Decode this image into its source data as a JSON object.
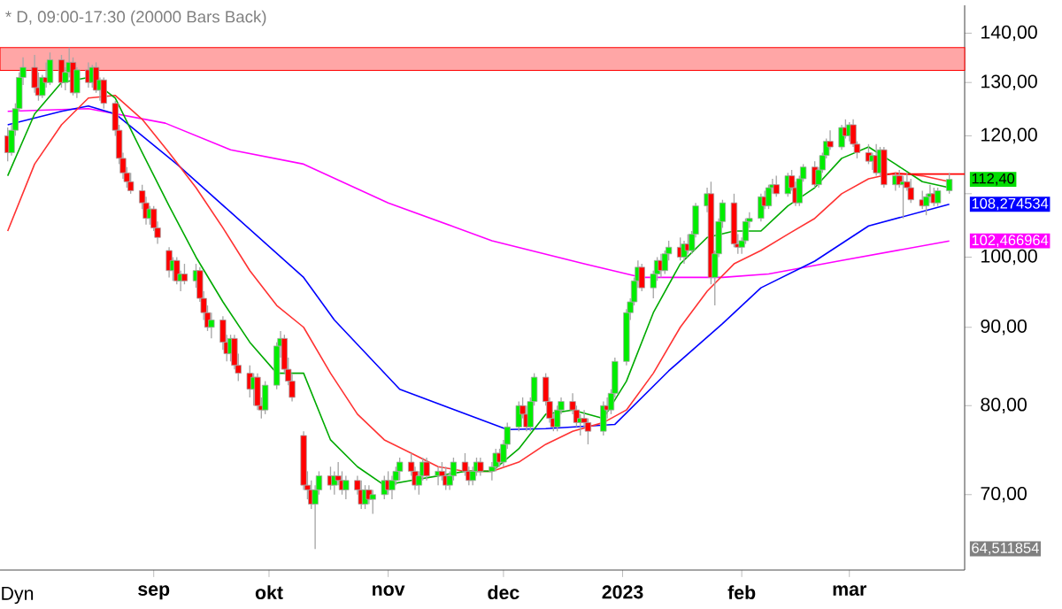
{
  "chart_data": {
    "type": "candlestick",
    "title": "* D, 09:00-17:30 (20000 Bars Back)",
    "x": [
      "2022-07-25",
      "2022-07-26",
      "2022-07-27",
      "2022-07-28",
      "2022-07-29",
      "2022-08-01",
      "2022-08-02",
      "2022-08-03",
      "2022-08-04",
      "2022-08-05",
      "2022-08-08",
      "2022-08-09",
      "2022-08-10",
      "2022-08-11",
      "2022-08-12",
      "2022-08-15",
      "2022-08-16",
      "2022-08-17",
      "2022-08-18",
      "2022-08-19",
      "2022-08-22",
      "2022-08-23",
      "2022-08-24",
      "2022-08-25",
      "2022-08-26",
      "2022-08-29",
      "2022-08-30",
      "2022-08-31",
      "2022-09-01",
      "2022-09-02",
      "2022-09-05",
      "2022-09-06",
      "2022-09-07",
      "2022-09-08",
      "2022-09-09",
      "2022-09-12",
      "2022-09-13",
      "2022-09-14",
      "2022-09-15",
      "2022-09-16",
      "2022-09-19",
      "2022-09-20",
      "2022-09-21",
      "2022-09-22",
      "2022-09-23",
      "2022-09-26",
      "2022-09-27",
      "2022-09-28",
      "2022-09-29",
      "2022-09-30",
      "2022-10-03",
      "2022-10-04",
      "2022-10-05",
      "2022-10-06",
      "2022-10-07",
      "2022-10-10",
      "2022-10-11",
      "2022-10-12",
      "2022-10-13",
      "2022-10-14",
      "2022-10-17",
      "2022-10-18",
      "2022-10-19",
      "2022-10-20",
      "2022-10-21",
      "2022-10-24",
      "2022-10-25",
      "2022-10-26",
      "2022-10-27",
      "2022-10-28",
      "2022-10-31",
      "2022-11-01",
      "2022-11-02",
      "2022-11-03",
      "2022-11-04",
      "2022-11-07",
      "2022-11-08",
      "2022-11-09",
      "2022-11-10",
      "2022-11-11",
      "2022-11-14",
      "2022-11-15",
      "2022-11-16",
      "2022-11-17",
      "2022-11-18",
      "2022-11-21",
      "2022-11-22",
      "2022-11-23",
      "2022-11-24",
      "2022-11-25",
      "2022-11-28",
      "2022-11-29",
      "2022-11-30",
      "2022-12-01",
      "2022-12-02",
      "2022-12-05",
      "2022-12-06",
      "2022-12-07",
      "2022-12-08",
      "2022-12-09",
      "2022-12-12",
      "2022-12-13",
      "2022-12-14",
      "2022-12-15",
      "2022-12-16",
      "2022-12-19",
      "2022-12-20",
      "2022-12-21",
      "2022-12-22",
      "2022-12-23",
      "2022-12-27",
      "2022-12-28",
      "2022-12-29",
      "2022-12-30",
      "2023-01-02",
      "2023-01-03",
      "2023-01-04",
      "2023-01-05",
      "2023-01-06",
      "2023-01-09",
      "2023-01-10",
      "2023-01-11",
      "2023-01-12",
      "2023-01-13",
      "2023-01-16",
      "2023-01-17",
      "2023-01-18",
      "2023-01-19",
      "2023-01-20",
      "2023-01-23",
      "2023-01-24",
      "2023-01-25",
      "2023-01-26",
      "2023-01-27",
      "2023-01-30",
      "2023-01-31",
      "2023-02-01",
      "2023-02-02",
      "2023-02-03",
      "2023-02-06",
      "2023-02-07",
      "2023-02-08",
      "2023-02-09",
      "2023-02-10",
      "2023-02-13",
      "2023-02-14",
      "2023-02-15",
      "2023-02-16",
      "2023-02-17",
      "2023-02-20",
      "2023-02-21",
      "2023-02-22",
      "2023-02-23",
      "2023-02-24",
      "2023-02-27",
      "2023-02-28",
      "2023-03-01",
      "2023-03-02",
      "2023-03-03",
      "2023-03-06",
      "2023-03-07",
      "2023-03-08",
      "2023-03-09",
      "2023-03-10",
      "2023-03-13",
      "2023-03-14",
      "2023-03-15",
      "2023-03-16",
      "2023-03-17",
      "2023-03-20",
      "2023-03-21",
      "2023-03-22",
      "2023-03-23",
      "2023-03-24",
      "2023-03-27"
    ],
    "ohlc": [
      [
        120,
        121.5,
        115.5,
        117
      ],
      [
        117,
        122,
        116.5,
        121
      ],
      [
        121,
        126,
        120,
        125
      ],
      [
        125,
        132,
        124.5,
        131
      ],
      [
        131,
        135,
        129.5,
        133
      ],
      [
        133,
        135.5,
        128,
        129
      ],
      [
        129,
        132,
        126.5,
        127.5
      ],
      [
        127.5,
        131.5,
        127,
        131
      ],
      [
        131,
        134,
        129,
        130
      ],
      [
        130,
        136,
        129.5,
        134.5
      ],
      [
        134.5,
        135.5,
        129,
        130
      ],
      [
        130,
        133,
        128.5,
        132
      ],
      [
        132,
        137,
        131,
        134
      ],
      [
        134,
        135,
        127.5,
        128
      ],
      [
        128,
        133,
        127,
        132.5
      ],
      [
        132.5,
        134,
        129,
        130
      ],
      [
        130,
        133.5,
        129,
        133
      ],
      [
        133,
        134,
        128,
        128.5
      ],
      [
        128.5,
        131,
        126.5,
        130.5
      ],
      [
        130.5,
        131,
        125,
        126
      ],
      [
        126,
        126.5,
        120,
        121
      ],
      [
        121,
        122,
        115,
        116
      ],
      [
        116,
        117,
        112.5,
        113.5
      ],
      [
        113.5,
        114.5,
        111,
        112
      ],
      [
        112,
        113.5,
        110,
        110.5
      ],
      [
        110.5,
        111.5,
        107.5,
        108.5
      ],
      [
        108.5,
        109.5,
        105,
        106
      ],
      [
        106,
        108,
        105,
        107.5
      ],
      [
        107.5,
        108,
        104,
        104.5
      ],
      [
        104.5,
        105.5,
        102,
        103
      ],
      [
        101,
        101.5,
        97,
        98
      ],
      [
        98,
        100,
        96.5,
        99.5
      ],
      [
        99.5,
        100,
        96,
        96.5
      ],
      [
        96.5,
        98,
        95,
        97.5
      ],
      [
        97.5,
        99,
        96,
        96.5
      ],
      [
        96.5,
        99,
        95.5,
        98
      ],
      [
        98,
        98.5,
        93.5,
        94
      ],
      [
        94,
        95,
        91,
        92
      ],
      [
        92,
        93,
        89.5,
        90
      ],
      [
        90,
        92,
        88.5,
        91
      ],
      [
        91,
        91.5,
        87,
        88
      ],
      [
        88,
        89,
        85.5,
        86.5
      ],
      [
        86.5,
        89,
        85.5,
        88.5
      ],
      [
        88.5,
        89,
        84.5,
        85
      ],
      [
        85,
        86.5,
        83,
        84
      ],
      [
        84,
        85,
        81,
        82
      ],
      [
        82,
        84,
        80,
        83.5
      ],
      [
        83.5,
        84,
        79.5,
        80
      ],
      [
        80,
        81,
        78.5,
        79.5
      ],
      [
        79.5,
        83,
        79,
        82.5
      ],
      [
        82.5,
        88,
        82,
        87.5
      ],
      [
        87.5,
        89.5,
        86,
        88.5
      ],
      [
        88.5,
        89,
        84,
        84.5
      ],
      [
        84.5,
        86,
        82.5,
        83
      ],
      [
        83,
        84,
        80.5,
        81
      ],
      [
        76.5,
        77,
        70.5,
        71
      ],
      [
        71,
        72.5,
        69.5,
        70.5
      ],
      [
        70.5,
        71.5,
        68.5,
        69
      ],
      [
        69,
        71,
        64.511854,
        70.5
      ],
      [
        70.5,
        72.5,
        70,
        72
      ],
      [
        72,
        73,
        70.5,
        71
      ],
      [
        71,
        72.5,
        70,
        72
      ],
      [
        72,
        73.5,
        71,
        71.5
      ],
      [
        71.5,
        72.5,
        70,
        70.5
      ],
      [
        70.5,
        72,
        69.5,
        71.5
      ],
      [
        71.5,
        72,
        70,
        70.5
      ],
      [
        70.5,
        71.5,
        68.5,
        69
      ],
      [
        69,
        71,
        68.5,
        70.5
      ],
      [
        70.5,
        71,
        69,
        69.5
      ],
      [
        69.5,
        70.5,
        68,
        70
      ],
      [
        70,
        72,
        69.5,
        71.5
      ],
      [
        71.5,
        72.5,
        70,
        70.5
      ],
      [
        70.5,
        72,
        69.5,
        71.5
      ],
      [
        71.5,
        73,
        71,
        72.5
      ],
      [
        72.5,
        74,
        71.5,
        73.5
      ],
      [
        73.5,
        74.5,
        72,
        72.5
      ],
      [
        72.5,
        73,
        70.5,
        71
      ],
      [
        71,
        72.5,
        70,
        72
      ],
      [
        72,
        74,
        71.5,
        73.5
      ],
      [
        73.5,
        74,
        71.5,
        72
      ],
      [
        72,
        73,
        71,
        72.5
      ],
      [
        72.5,
        73.5,
        71.5,
        72
      ],
      [
        72,
        73,
        70.5,
        71
      ],
      [
        71,
        72.5,
        70.5,
        72
      ],
      [
        72,
        74,
        71.5,
        73.5
      ],
      [
        73.5,
        74.5,
        72,
        72.5
      ],
      [
        72.5,
        73,
        71,
        71.5
      ],
      [
        71.5,
        73,
        71,
        72.5
      ],
      [
        72.5,
        74,
        72,
        73.5
      ],
      [
        73.5,
        74,
        72,
        72.5
      ],
      [
        72.5,
        73.5,
        71.5,
        73
      ],
      [
        73,
        75,
        72.5,
        74.5
      ],
      [
        74.5,
        75,
        73,
        73.5
      ],
      [
        73.5,
        76,
        73,
        75.5
      ],
      [
        75.5,
        78,
        75,
        77.5
      ],
      [
        77.5,
        80.5,
        77,
        80
      ],
      [
        80,
        81,
        78.5,
        79
      ],
      [
        79,
        80,
        77,
        77.5
      ],
      [
        77.5,
        81,
        77,
        80.5
      ],
      [
        80.5,
        84,
        80,
        83.5
      ],
      [
        83.5,
        84,
        80,
        80.5
      ],
      [
        80.5,
        81,
        78,
        78.5
      ],
      [
        78.5,
        79,
        77,
        77.5
      ],
      [
        77.5,
        80,
        77,
        79.5
      ],
      [
        79.5,
        81,
        79,
        80.5
      ],
      [
        80.5,
        81.5,
        79,
        79.5
      ],
      [
        79.5,
        80,
        77.5,
        78
      ],
      [
        78,
        79,
        76.5,
        78.5
      ],
      [
        78.5,
        79.5,
        77.5,
        78
      ],
      [
        78,
        78.5,
        75.5,
        77
      ],
      [
        77,
        80.5,
        76.5,
        80
      ],
      [
        80,
        81,
        78.5,
        79.5
      ],
      [
        79.5,
        82,
        79,
        81.5
      ],
      [
        81.5,
        86,
        81,
        85.5
      ],
      [
        85.5,
        92.5,
        85,
        92
      ],
      [
        92,
        94,
        91,
        93.5
      ],
      [
        93.5,
        97,
        93,
        96.5
      ],
      [
        96.5,
        99.5,
        95.5,
        98.5
      ],
      [
        98.5,
        99,
        95,
        95.5
      ],
      [
        95.5,
        98,
        94,
        97.5
      ],
      [
        97.5,
        100,
        96.5,
        99.5
      ],
      [
        99.5,
        100.5,
        97,
        98
      ],
      [
        98,
        101,
        97.5,
        100.5
      ],
      [
        100.5,
        102.5,
        99.5,
        101.5
      ],
      [
        101.5,
        103,
        99.5,
        100
      ],
      [
        100,
        102.5,
        99,
        102
      ],
      [
        102,
        103.5,
        100.5,
        101
      ],
      [
        101,
        104,
        100.5,
        103.5
      ],
      [
        103.5,
        108.5,
        103,
        108
      ],
      [
        108,
        111,
        107,
        110
      ],
      [
        110,
        112,
        96,
        97
      ],
      [
        97,
        101,
        93,
        100.5
      ],
      [
        100.5,
        106,
        100,
        105.5
      ],
      [
        105.5,
        109,
        104.5,
        108.5
      ],
      [
        108.5,
        110,
        101.5,
        102
      ],
      [
        102,
        103.5,
        100.5,
        101.5
      ],
      [
        101.5,
        103,
        100.5,
        102.5
      ],
      [
        102.5,
        106,
        102,
        105.5
      ],
      [
        105.5,
        107,
        104.5,
        106
      ],
      [
        106,
        110,
        105.5,
        109.5
      ],
      [
        109.5,
        110.5,
        107.5,
        108
      ],
      [
        108,
        111.5,
        107.5,
        111
      ],
      [
        111,
        112.5,
        110,
        111.5
      ],
      [
        111.5,
        113,
        109.5,
        110
      ],
      [
        110,
        113.5,
        109.5,
        113
      ],
      [
        113,
        114,
        110.5,
        111
      ],
      [
        111,
        112,
        108,
        108.5
      ],
      [
        108.5,
        113,
        108,
        112.5
      ],
      [
        112.5,
        115,
        112,
        114.5
      ],
      [
        114.5,
        115.5,
        111,
        111.5
      ],
      [
        111.5,
        114.5,
        111,
        114
      ],
      [
        114,
        117,
        113.5,
        116.5
      ],
      [
        116.5,
        119.5,
        116,
        119
      ],
      [
        119,
        121,
        117.5,
        118
      ],
      [
        118,
        122,
        117.5,
        121.5
      ],
      [
        121.5,
        123,
        119.5,
        120
      ],
      [
        120,
        122.5,
        119,
        122
      ],
      [
        122,
        123,
        118,
        118.5
      ],
      [
        118.5,
        119,
        116,
        117
      ],
      [
        117,
        118.5,
        115,
        115.5
      ],
      [
        115.5,
        117,
        114,
        116.5
      ],
      [
        116.5,
        118.5,
        113,
        113.5
      ],
      [
        113.5,
        118,
        113,
        117.5
      ],
      [
        117.5,
        118,
        111,
        111.5
      ],
      [
        111.5,
        113.5,
        110.5,
        113
      ],
      [
        113,
        114,
        111,
        111.5
      ],
      [
        111.5,
        113,
        106,
        112
      ],
      [
        112,
        113.5,
        110.5,
        111
      ],
      [
        111,
        112.5,
        108.5,
        109
      ],
      [
        109,
        110.5,
        107.5,
        108
      ],
      [
        108,
        110,
        106.5,
        109.5
      ],
      [
        109.5,
        111.5,
        108.5,
        110
      ],
      [
        110,
        111,
        108,
        108.5
      ],
      [
        108.5,
        111,
        108,
        110.5
      ],
      [
        110.5,
        113.5,
        110,
        112.4
      ]
    ],
    "series": [
      {
        "type": "line",
        "color": "#ff00ff",
        "x": [
          "2022-07-25",
          "2022-08-15",
          "2022-09-04",
          "2022-09-21",
          "2022-10-10",
          "2022-11-01",
          "2022-11-28",
          "2022-12-22",
          "2023-01-06",
          "2023-01-27",
          "2023-02-08",
          "2023-02-27",
          "2023-03-27"
        ],
        "values": [
          124.5,
          125,
          122.3,
          117.5,
          115,
          108.5,
          102.5,
          99,
          97,
          97,
          97.5,
          99.5,
          102.466964
        ]
      },
      {
        "type": "line",
        "color": "#0000ff",
        "x": [
          "2022-07-25",
          "2022-08-08",
          "2022-08-15",
          "2022-08-22",
          "2022-09-07",
          "2022-09-21",
          "2022-10-10",
          "2022-10-18",
          "2022-11-04",
          "2022-12-02",
          "2022-12-12",
          "2022-12-30",
          "2023-01-13",
          "2023-01-27",
          "2023-02-06",
          "2023-02-20",
          "2023-03-06",
          "2023-03-27"
        ],
        "values": [
          122,
          124.5,
          125.5,
          124,
          115,
          107,
          97,
          91,
          82,
          77.2,
          77.3,
          77.8,
          84.3,
          90.5,
          95.5,
          99.4,
          104.8,
          108.274534
        ]
      },
      {
        "type": "line",
        "color": "#ff3333",
        "x": [
          "2022-07-25",
          "2022-08-01",
          "2022-08-08",
          "2022-08-15",
          "2022-08-22",
          "2022-08-29",
          "2022-09-05",
          "2022-09-12",
          "2022-09-19",
          "2022-09-26",
          "2022-10-03",
          "2022-10-10",
          "2022-10-17",
          "2022-10-24",
          "2022-10-31",
          "2022-11-07",
          "2022-11-14",
          "2022-11-21",
          "2022-11-28",
          "2022-12-05",
          "2022-12-12",
          "2022-12-19",
          "2022-12-27",
          "2023-01-02",
          "2023-01-09",
          "2023-01-16",
          "2023-01-23",
          "2023-01-30",
          "2023-02-06",
          "2023-02-13",
          "2023-02-20",
          "2023-02-27",
          "2023-03-06",
          "2023-03-13",
          "2023-03-20",
          "2023-03-27"
        ],
        "values": [
          104,
          115,
          122,
          127,
          127.5,
          123,
          117,
          111,
          104.5,
          98,
          93,
          90,
          84,
          79,
          76,
          74.5,
          73,
          72.5,
          72.5,
          73.5,
          75.5,
          77,
          78,
          79.5,
          84,
          90,
          95,
          99,
          101,
          103.5,
          106,
          110,
          112.5,
          113.5,
          113,
          112
        ]
      },
      {
        "type": "line",
        "color": "#00aa00",
        "x": [
          "2022-07-25",
          "2022-08-01",
          "2022-08-08",
          "2022-08-15",
          "2022-08-22",
          "2022-08-29",
          "2022-09-05",
          "2022-09-12",
          "2022-09-19",
          "2022-09-26",
          "2022-10-03",
          "2022-10-10",
          "2022-10-17",
          "2022-10-24",
          "2022-10-31",
          "2022-11-07",
          "2022-11-14",
          "2022-11-21",
          "2022-11-28",
          "2022-12-05",
          "2022-12-12",
          "2022-12-19",
          "2022-12-27",
          "2023-01-02",
          "2023-01-09",
          "2023-01-16",
          "2023-01-23",
          "2023-01-30",
          "2023-02-06",
          "2023-02-13",
          "2023-02-20",
          "2023-02-27",
          "2023-03-06",
          "2023-03-13",
          "2023-03-20",
          "2023-03-27"
        ],
        "values": [
          113,
          124,
          130,
          131,
          127,
          117,
          108,
          100,
          93.5,
          88,
          84,
          84,
          76,
          73,
          71,
          71.5,
          72,
          72.5,
          72.5,
          75,
          79,
          79.5,
          78.5,
          83,
          92,
          99,
          103,
          104,
          104,
          108,
          111,
          116,
          118,
          115,
          112,
          111
        ]
      },
      {
        "type": "line",
        "color": "#ff0000",
        "x": [
          "2023-03-10",
          "2023-03-31"
        ],
        "values": [
          113.3,
          113.3
        ]
      }
    ],
    "bands": [
      {
        "axis": "y",
        "from": 132.4,
        "to": 137,
        "color": "#ff0000"
      }
    ],
    "annotations": [
      {
        "text": "112,40",
        "x": "2023-03-27",
        "y": 112.4
      },
      {
        "text": "108,274534",
        "x": "2023-03-27",
        "y": 108.274534
      },
      {
        "text": "102,466964",
        "x": "2023-03-27",
        "y": 102.466964
      },
      "64,511854",
      "Dyn"
    ],
    "xlim": [
      "2022-07-23",
      "2023-03-31"
    ],
    "xticks": [
      {
        "value": "2022-09-01",
        "label": "sep"
      },
      {
        "value": "2022-10-01",
        "label": "okt"
      },
      {
        "value": "2022-11-01",
        "label": "nov"
      },
      {
        "value": "2022-12-01",
        "label": "dec"
      },
      {
        "value": "2023-01-01",
        "label": "2023"
      },
      {
        "value": "2023-02-01",
        "label": "feb"
      },
      {
        "value": "2023-03-01",
        "label": "mar"
      }
    ],
    "ylim": [
      62.5,
      146
    ],
    "yticks": [
      {
        "value": 70,
        "label": "70,00"
      },
      {
        "value": 80,
        "label": "80,00"
      },
      {
        "value": 90,
        "label": "90,00"
      },
      {
        "value": 100,
        "label": "100,00"
      },
      {
        "value": 110,
        "label": null
      },
      {
        "value": 120,
        "label": "120,00"
      },
      {
        "value": 130,
        "label": "130,00"
      },
      {
        "value": 140,
        "label": "140,00"
      }
    ],
    "log": "y"
  }
}
